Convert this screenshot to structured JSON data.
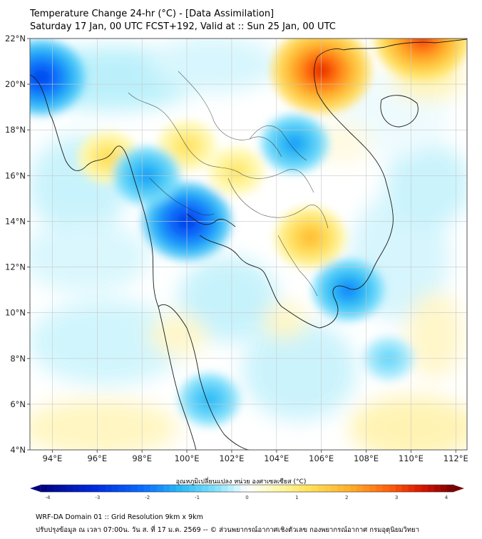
{
  "header": {
    "title": "Temperature Change 24-hr (°C) - [Data Assimilation]",
    "subtitle": "Saturday 17 Jan, 00 UTC FCST+192, Valid at :: Sun 25 Jan, 00 UTC"
  },
  "map": {
    "lat_range": [
      4,
      22
    ],
    "lon_range": [
      93,
      112.5
    ],
    "lat_ticks": [
      "4°N",
      "6°N",
      "8°N",
      "10°N",
      "12°N",
      "14°N",
      "16°N",
      "18°N",
      "20°N",
      "22°N"
    ],
    "lon_ticks": [
      "94°E",
      "96°E",
      "98°E",
      "100°E",
      "102°E",
      "104°E",
      "106°E",
      "108°E",
      "110°E",
      "112°E"
    ],
    "grid": true,
    "features": [
      {
        "kind": "warm",
        "lon": 106.0,
        "lat": 20.6,
        "value": 3.2
      },
      {
        "kind": "warm",
        "lon": 110.5,
        "lat": 22.0,
        "value": 3.0
      },
      {
        "kind": "warm",
        "lon": 105.5,
        "lat": 13.3,
        "value": 1.8
      },
      {
        "kind": "warm",
        "lon": 100.0,
        "lat": 17.3,
        "value": 1.2
      },
      {
        "kind": "warm",
        "lon": 102.2,
        "lat": 16.2,
        "value": 1.1
      },
      {
        "kind": "warm",
        "lon": 96.5,
        "lat": 16.8,
        "value": 1.3
      },
      {
        "kind": "cold",
        "lon": 93.5,
        "lat": 20.3,
        "value": -2.6
      },
      {
        "kind": "cold",
        "lon": 100.0,
        "lat": 14.0,
        "value": -2.7
      },
      {
        "kind": "cold",
        "lon": 104.8,
        "lat": 17.4,
        "value": -1.6
      },
      {
        "kind": "cold",
        "lon": 107.2,
        "lat": 11.0,
        "value": -1.8
      },
      {
        "kind": "cold",
        "lon": 101.0,
        "lat": 6.2,
        "value": -1.3
      },
      {
        "kind": "cold",
        "lon": 98.2,
        "lat": 16.0,
        "value": -1.6
      },
      {
        "kind": "cold",
        "lon": 109.0,
        "lat": 8.0,
        "value": -0.8
      }
    ]
  },
  "colorbar": {
    "label": "อุณหภูมิเปลี่ยนแปลง หน่วย องศาเซลเซียส (°C)",
    "ticks": [
      "-4",
      "-3",
      "-2",
      "-1",
      "0",
      "1",
      "2",
      "3",
      "4"
    ],
    "range": [
      -4,
      4
    ],
    "colors": [
      "#000080",
      "#0000d0",
      "#0060ff",
      "#20b0f0",
      "#40e0ff",
      "#a0f0ff",
      "#ffffff",
      "#ffffa0",
      "#ffe040",
      "#ffa020",
      "#ff4000",
      "#d00000",
      "#600000"
    ]
  },
  "footer": {
    "line1": "WRF-DA Domain 01 :: Grid Resolution 9km x 9km",
    "line2": "ปรับปรุงข้อมูล ณ เวลา 07:00น. วัน ส. ที่ 17 ม.ค. 2569 -- © ส่วนพยากรณ์อากาศเชิงตัวเลข กองพยากรณ์อากาศ กรมอุตุนิยมวิทยา"
  }
}
